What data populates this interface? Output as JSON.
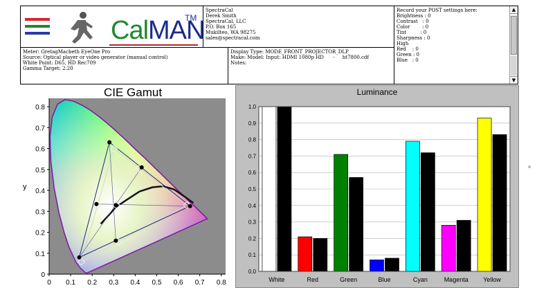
{
  "logo": {
    "text_cal": "Cal",
    "text_man": "MAN",
    "tm": "TM",
    "bar_colors": [
      "#d7262b",
      "#1c8a2e",
      "#2a3aa6"
    ]
  },
  "company": {
    "lines": [
      "SpectraCal",
      "Derek Smith",
      "SpectraCal, LLC",
      "P.O. Box 165",
      "Mukilteo, WA 98275",
      "sales@spectracal.com"
    ]
  },
  "post": {
    "header": "Record your POST settings here:",
    "lines": [
      "",
      "Brightness : 0",
      "Contrast   : 0",
      "Color        : 0",
      "Tint         : 0",
      "Sharpness : 0",
      "",
      "High",
      "Red    : 0",
      "Green : 0",
      "Blue   : 0"
    ],
    "scroll_up": "▲",
    "scroll_down": "▼"
  },
  "meter": {
    "lines": [
      "Meter: GretagMacbeth EyeOne Pro",
      "Source: Optical player or video generator (manual control)",
      "White Point: D65, HD Rec709",
      "Gamma Target: 2.20"
    ]
  },
  "display": {
    "lines": [
      "Display Type: MODE_FRONT_PROJECTOR_DLP",
      "Make: Model: Input: HDMI 1080p HD      -     ht7800.cdf",
      "Notes:"
    ]
  },
  "gamut": {
    "title": "CIE Gamut",
    "ylabel": "y",
    "xticks": [
      "0",
      "0.1",
      "0.2",
      "0.3",
      "0.4",
      "0.5",
      "0.6",
      "0.7",
      "0.8"
    ],
    "yticks": [
      "0",
      "0.1",
      "0.2",
      "0.3",
      "0.4",
      "0.5",
      "0.6",
      "0.7",
      "0.8"
    ],
    "measured": [
      {
        "x": 0.28,
        "y": 0.63
      },
      {
        "x": 0.655,
        "y": 0.325
      },
      {
        "x": 0.14,
        "y": 0.08
      },
      {
        "x": 0.43,
        "y": 0.51
      },
      {
        "x": 0.22,
        "y": 0.335
      },
      {
        "x": 0.31,
        "y": 0.16
      },
      {
        "x": 0.31,
        "y": 0.33
      }
    ],
    "reference": [
      {
        "x": 0.3,
        "y": 0.6
      },
      {
        "x": 0.64,
        "y": 0.33
      },
      {
        "x": 0.15,
        "y": 0.06
      },
      {
        "x": 0.419,
        "y": 0.505
      },
      {
        "x": 0.225,
        "y": 0.329
      },
      {
        "x": 0.321,
        "y": 0.154
      },
      {
        "x": 0.3127,
        "y": 0.329
      }
    ]
  },
  "chart_data": {
    "type": "bar",
    "title": "Luminance",
    "categories": [
      "White",
      "Red",
      "Green",
      "Blue",
      "Cyan",
      "Magenta",
      "Yellow"
    ],
    "series": [
      {
        "values": [
          1.0,
          0.21,
          0.71,
          0.07,
          0.79,
          0.28,
          0.93
        ],
        "colors": [
          "#ffffff",
          "#ff0000",
          "#008000",
          "#0000ff",
          "#00ffff",
          "#ff00ff",
          "#ffff00"
        ]
      },
      {
        "values": [
          1.0,
          0.2,
          0.57,
          0.08,
          0.72,
          0.31,
          0.83
        ],
        "color": "#000000"
      }
    ],
    "ylim": [
      0,
      1.0
    ],
    "yticks": [
      "0.0",
      "0.1",
      "0.2",
      "0.3",
      "0.4",
      "0.5",
      "0.6",
      "0.7",
      "0.8",
      "0.9",
      "1.0"
    ],
    "grid": true
  }
}
